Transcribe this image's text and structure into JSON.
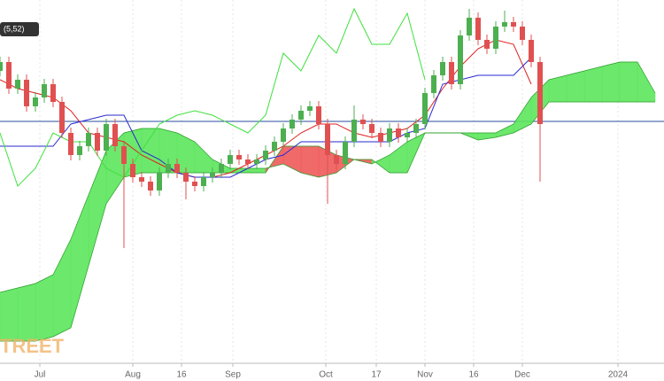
{
  "chart_data": {
    "type": "candlestick",
    "legend_label": "(5,52)",
    "watermark": "TREET",
    "ylim": [
      0,
      410
    ],
    "xlim": [
      0,
      750
    ],
    "grid": true,
    "xticks": [
      {
        "value": 45,
        "label": "Jul"
      },
      {
        "value": 150,
        "label": "Aug"
      },
      {
        "value": 205,
        "label": "16"
      },
      {
        "value": 263,
        "label": "Sep"
      },
      {
        "value": 368,
        "label": "Oct"
      },
      {
        "value": 425,
        "label": "17"
      },
      {
        "value": 480,
        "label": "Nov"
      },
      {
        "value": 535,
        "label": "16"
      },
      {
        "value": 590,
        "label": "Dec"
      },
      {
        "value": 698,
        "label": "2024"
      }
    ],
    "hline": {
      "value": 273,
      "color": "#2a4d9e"
    },
    "up_color": "#4caf50",
    "down_color": "#e05050",
    "candles": {
      "x": [
        0,
        10,
        20,
        30,
        40,
        50,
        60,
        70,
        80,
        90,
        100,
        110,
        120,
        130,
        140,
        150,
        160,
        170,
        180,
        190,
        200,
        210,
        220,
        230,
        240,
        250,
        260,
        270,
        280,
        290,
        300,
        310,
        320,
        330,
        340,
        350,
        360,
        370,
        380,
        390,
        400,
        410,
        420,
        430,
        440,
        450,
        460,
        470,
        480,
        490,
        500,
        510,
        520,
        530,
        540,
        550,
        560,
        570,
        580,
        590,
        600,
        610
      ],
      "open": [
        330,
        340,
        310,
        320,
        290,
        300,
        315,
        295,
        260,
        235,
        245,
        260,
        240,
        270,
        245,
        225,
        210,
        205,
        195,
        215,
        225,
        215,
        205,
        200,
        210,
        215,
        225,
        235,
        230,
        225,
        230,
        240,
        250,
        265,
        275,
        285,
        290,
        270,
        235,
        225,
        250,
        275,
        270,
        260,
        250,
        265,
        255,
        260,
        270,
        305,
        325,
        340,
        315,
        370,
        390,
        365,
        355,
        380,
        385,
        380,
        365,
        340
      ],
      "high": [
        346,
        346,
        326,
        326,
        306,
        321,
        321,
        301,
        266,
        251,
        266,
        266,
        276,
        276,
        251,
        231,
        216,
        211,
        221,
        231,
        231,
        221,
        211,
        216,
        221,
        231,
        241,
        241,
        236,
        236,
        246,
        256,
        271,
        281,
        291,
        296,
        296,
        276,
        241,
        256,
        291,
        281,
        276,
        266,
        271,
        271,
        266,
        276,
        311,
        331,
        346,
        346,
        376,
        400,
        396,
        371,
        386,
        398,
        391,
        386,
        371,
        346
      ],
      "low": [
        324,
        304,
        304,
        284,
        284,
        294,
        289,
        254,
        229,
        229,
        239,
        234,
        234,
        239,
        130,
        204,
        199,
        189,
        189,
        209,
        209,
        185,
        194,
        194,
        204,
        209,
        219,
        224,
        219,
        219,
        224,
        234,
        244,
        259,
        269,
        279,
        264,
        180,
        219,
        219,
        244,
        264,
        254,
        244,
        244,
        249,
        249,
        254,
        264,
        299,
        319,
        309,
        309,
        364,
        359,
        349,
        349,
        374,
        374,
        359,
        334,
        205
      ],
      "close": [
        340,
        310,
        320,
        290,
        300,
        315,
        295,
        260,
        235,
        245,
        260,
        240,
        270,
        245,
        225,
        210,
        205,
        195,
        215,
        225,
        215,
        205,
        200,
        210,
        215,
        225,
        235,
        230,
        225,
        230,
        240,
        250,
        265,
        275,
        285,
        290,
        270,
        235,
        225,
        250,
        275,
        270,
        260,
        250,
        265,
        255,
        260,
        270,
        305,
        325,
        340,
        315,
        370,
        390,
        365,
        355,
        380,
        385,
        380,
        365,
        340,
        270
      ]
    },
    "lines": [
      {
        "color": "#e02020",
        "x": [
          0,
          20,
          40,
          60,
          80,
          100,
          120,
          140,
          160,
          180,
          200,
          220,
          240,
          260,
          280,
          300,
          320,
          340,
          360,
          380,
          400,
          420,
          440,
          460,
          480,
          500,
          520,
          540,
          560,
          580,
          600
        ],
        "values": [
          320,
          310,
          305,
          300,
          285,
          260,
          255,
          250,
          235,
          225,
          215,
          210,
          210,
          215,
          225,
          235,
          245,
          260,
          270,
          270,
          260,
          255,
          260,
          265,
          280,
          310,
          335,
          355,
          365,
          360,
          315
        ]
      },
      {
        "color": "#2a2ad0",
        "x": [
          0,
          20,
          40,
          60,
          80,
          100,
          120,
          140,
          160,
          180,
          200,
          220,
          240,
          260,
          280,
          300,
          320,
          340,
          360,
          380,
          400,
          420,
          440,
          460,
          480,
          500,
          520,
          540,
          560,
          580,
          600
        ],
        "values": [
          245,
          245,
          245,
          245,
          270,
          275,
          280,
          280,
          240,
          230,
          215,
          210,
          210,
          210,
          220,
          230,
          235,
          250,
          250,
          250,
          250,
          250,
          250,
          260,
          265,
          315,
          320,
          325,
          325,
          325,
          345
        ]
      },
      {
        "color": "#3ee03e",
        "x": [
          0,
          20,
          40,
          60,
          80,
          100,
          120,
          140,
          160,
          180,
          200,
          220,
          240,
          260,
          280,
          300,
          320,
          340,
          360,
          380,
          400,
          420,
          440,
          460,
          480
        ],
        "values": [
          260,
          200,
          220,
          260,
          250,
          250,
          220,
          210,
          240,
          270,
          280,
          285,
          280,
          270,
          260,
          280,
          350,
          330,
          370,
          350,
          400,
          360,
          360,
          395,
          320
        ]
      }
    ],
    "cloud": {
      "up_color": "#5ce65c",
      "down_color": "#f05a5a",
      "x": [
        0,
        20,
        40,
        60,
        80,
        100,
        120,
        140,
        160,
        180,
        200,
        220,
        240,
        260,
        280,
        300,
        320,
        340,
        360,
        380,
        400,
        420,
        440,
        460,
        480,
        500,
        520,
        540,
        560,
        580,
        600,
        620,
        640,
        660,
        680,
        700,
        720,
        740
      ],
      "span_a": [
        80,
        85,
        90,
        100,
        140,
        190,
        240,
        260,
        265,
        265,
        260,
        250,
        230,
        220,
        220,
        220,
        225,
        215,
        210,
        215,
        230,
        225,
        235,
        250,
        260,
        260,
        260,
        260,
        260,
        270,
        300,
        320,
        325,
        330,
        335,
        340,
        340,
        305
      ],
      "span_b": [
        25,
        25,
        25,
        30,
        40,
        110,
        180,
        210,
        215,
        215,
        215,
        215,
        215,
        215,
        215,
        215,
        245,
        245,
        245,
        235,
        230,
        230,
        215,
        215,
        260,
        260,
        260,
        252,
        255,
        260,
        270,
        295,
        295,
        295,
        295,
        295,
        295,
        295
      ]
    }
  }
}
